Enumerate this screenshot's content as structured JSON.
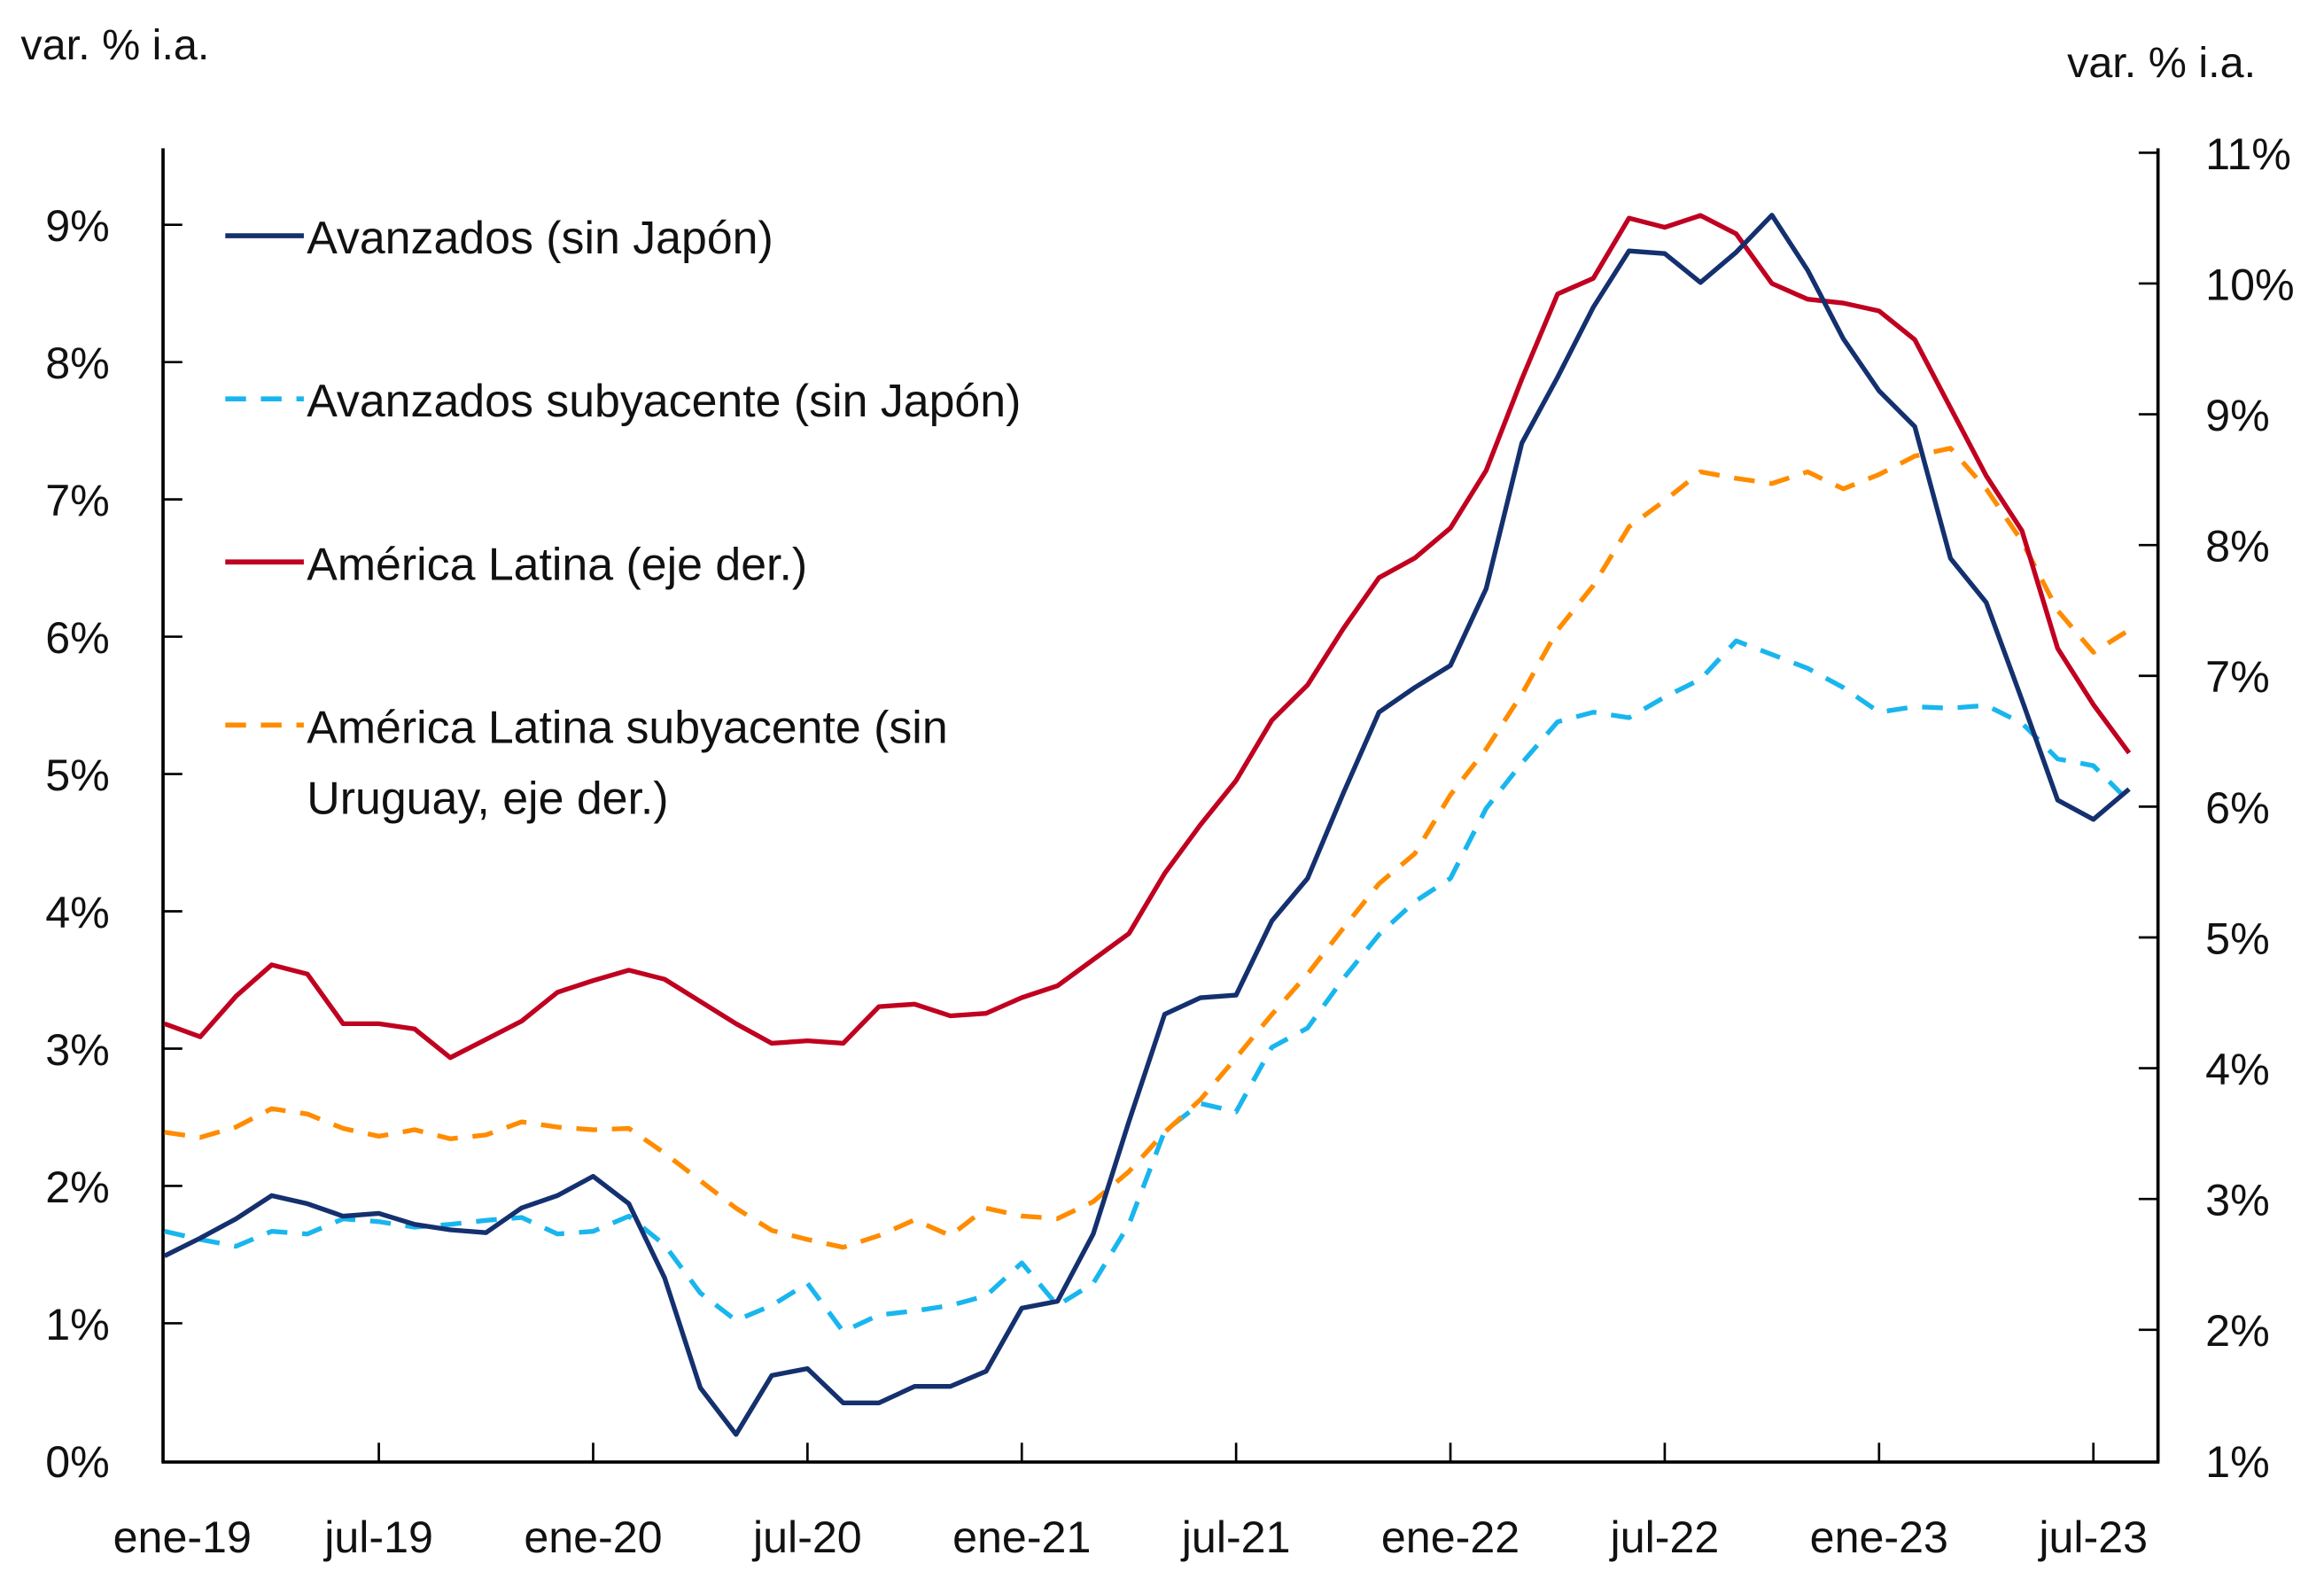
{
  "chart_data": {
    "type": "line",
    "title": "",
    "left_axis": {
      "label": "var. % i.a.",
      "ylim": [
        0,
        9.5
      ],
      "ticks": [
        0,
        1,
        2,
        3,
        4,
        5,
        6,
        7,
        8,
        9
      ],
      "tick_labels": [
        "0%",
        "1%",
        "2%",
        "3%",
        "4%",
        "5%",
        "6%",
        "7%",
        "8%",
        "9%"
      ]
    },
    "right_axis": {
      "label": "var. % i.a.",
      "ylim": [
        1,
        11
      ],
      "ticks": [
        1,
        2,
        3,
        4,
        5,
        6,
        7,
        8,
        9,
        10,
        11
      ],
      "tick_labels": [
        "1%",
        "2%",
        "3%",
        "4%",
        "5%",
        "6%",
        "7%",
        "8%",
        "9%",
        "10%",
        "11%"
      ]
    },
    "x_axis": {
      "tick_labels": [
        "ene-19",
        "jul-19",
        "ene-20",
        "jul-20",
        "ene-21",
        "jul-21",
        "ene-22",
        "jul-22",
        "ene-23",
        "jul-23"
      ],
      "tick_month_index": [
        0,
        6,
        12,
        18,
        24,
        30,
        36,
        42,
        48,
        54
      ],
      "n_months": 56,
      "start": "ene-19",
      "end": "ago-23"
    },
    "legend_position": "top-left",
    "grid": false,
    "series": [
      {
        "name": "Avanzados (sin Japón)",
        "axis": "left",
        "color": "#14306e",
        "dash": "solid",
        "values": [
          1.49,
          1.62,
          1.76,
          1.93,
          1.87,
          1.78,
          1.8,
          1.72,
          1.68,
          1.66,
          1.84,
          1.93,
          2.07,
          1.87,
          1.33,
          0.53,
          0.19,
          0.62,
          0.67,
          0.42,
          0.42,
          0.54,
          0.54,
          0.65,
          1.11,
          1.16,
          1.65,
          2.47,
          3.25,
          3.37,
          3.39,
          3.93,
          4.24,
          4.86,
          5.45,
          5.63,
          5.79,
          6.35,
          7.41,
          7.89,
          8.4,
          8.81,
          8.79,
          8.58,
          8.8,
          9.07,
          8.67,
          8.17,
          7.79,
          7.53,
          6.57,
          6.25,
          5.54,
          4.81,
          4.67,
          4.89
        ]
      },
      {
        "name": "Avanzados subyacente (sin Japón)",
        "axis": "left",
        "color": "#19b6ee",
        "dash": "dashed",
        "values": [
          1.67,
          1.61,
          1.56,
          1.67,
          1.65,
          1.76,
          1.74,
          1.7,
          1.72,
          1.75,
          1.77,
          1.65,
          1.67,
          1.78,
          1.57,
          1.22,
          1.02,
          1.13,
          1.29,
          0.94,
          1.06,
          1.09,
          1.13,
          1.2,
          1.44,
          1.13,
          1.29,
          1.72,
          2.4,
          2.6,
          2.54,
          3.01,
          3.15,
          3.51,
          3.83,
          4.07,
          4.24,
          4.75,
          5.08,
          5.38,
          5.45,
          5.41,
          5.56,
          5.69,
          5.97,
          5.87,
          5.77,
          5.63,
          5.45,
          5.49,
          5.48,
          5.5,
          5.37,
          5.11,
          5.06,
          4.8
        ]
      },
      {
        "name": "América Latina (eje der.)",
        "axis": "right",
        "color": "#c00020",
        "dash": "solid",
        "values": [
          4.34,
          4.24,
          4.55,
          4.79,
          4.72,
          4.34,
          4.34,
          4.3,
          4.08,
          4.22,
          4.36,
          4.58,
          4.67,
          4.75,
          4.68,
          4.51,
          4.34,
          4.19,
          4.21,
          4.19,
          4.47,
          4.49,
          4.4,
          4.42,
          4.54,
          4.63,
          4.83,
          5.03,
          5.49,
          5.86,
          6.2,
          6.66,
          6.93,
          7.36,
          7.75,
          7.9,
          8.13,
          8.57,
          9.27,
          9.92,
          10.04,
          10.5,
          10.43,
          10.52,
          10.38,
          10.0,
          9.88,
          9.85,
          9.79,
          9.57,
          9.05,
          8.53,
          8.11,
          7.21,
          6.78,
          6.41
        ]
      },
      {
        "name": "América Latina subyacente (sin Uruguay, eje der.)",
        "axis": "right",
        "color": "#ff8c00",
        "dash": "dashed",
        "values": [
          3.51,
          3.47,
          3.55,
          3.69,
          3.65,
          3.54,
          3.48,
          3.53,
          3.46,
          3.49,
          3.59,
          3.55,
          3.53,
          3.54,
          3.35,
          3.14,
          2.93,
          2.76,
          2.69,
          2.63,
          2.72,
          2.84,
          2.72,
          2.93,
          2.87,
          2.85,
          2.98,
          3.21,
          3.51,
          3.76,
          4.08,
          4.41,
          4.72,
          5.07,
          5.41,
          5.64,
          6.09,
          6.44,
          6.86,
          7.35,
          7.69,
          8.14,
          8.34,
          8.56,
          8.51,
          8.47,
          8.56,
          8.43,
          8.54,
          8.68,
          8.74,
          8.43,
          8.03,
          7.5,
          7.18,
          7.35
        ]
      }
    ]
  },
  "legend": {
    "items": [
      {
        "label_lines": [
          "Avanzados (sin Japón)"
        ]
      },
      {
        "label_lines": [
          "Avanzados subyacente (sin Japón)"
        ]
      },
      {
        "label_lines": [
          "América Latina (eje der.)"
        ]
      },
      {
        "label_lines": [
          "América Latina subyacente (sin",
          "Uruguay, eje der.)"
        ]
      }
    ]
  }
}
